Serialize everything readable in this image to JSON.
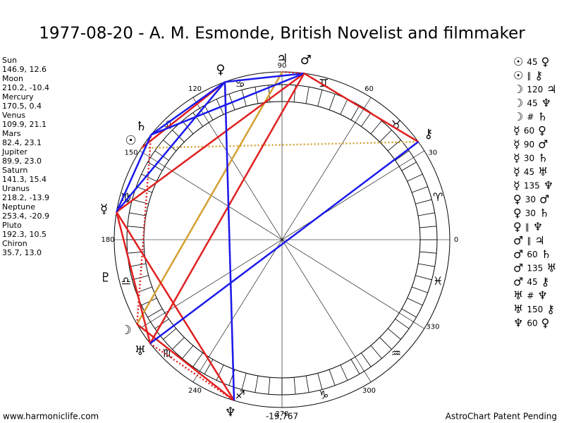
{
  "header": {
    "title": "1977-08-20 - A. M. Esmonde, British Novelist and filmmaker"
  },
  "planets": [
    {
      "name": "Sun",
      "glyph": "☉",
      "coords": "146.9, 12.6"
    },
    {
      "name": "Moon",
      "glyph": "☽",
      "coords": "210.2, -10.4"
    },
    {
      "name": "Mercury",
      "glyph": "☿",
      "coords": "170.5, 0.4"
    },
    {
      "name": "Venus",
      "glyph": "♀",
      "coords": "109.9, 21.1"
    },
    {
      "name": "Mars",
      "glyph": "♂",
      "coords": "82.4, 23.1"
    },
    {
      "name": "Jupiter",
      "glyph": "♃",
      "coords": "89.9, 23.0"
    },
    {
      "name": "Saturn",
      "glyph": "♄",
      "coords": "141.3, 15.4"
    },
    {
      "name": "Uranus",
      "glyph": "♅",
      "coords": "218.2, -13.9"
    },
    {
      "name": "Neptune",
      "glyph": "♆",
      "coords": "253.4, -20.9"
    },
    {
      "name": "Pluto",
      "glyph": "♇",
      "coords": "192.3, 10.5"
    },
    {
      "name": "Chiron",
      "glyph": "⚷",
      "coords": "35.7, 13.0"
    }
  ],
  "signs": [
    "♈",
    "♉",
    "♊",
    "♋",
    "♌",
    "♍",
    "♎",
    "♏",
    "♐",
    "♑",
    "♒",
    "♓"
  ],
  "degree_labels": [
    90,
    60,
    30,
    0,
    330,
    300,
    270,
    240,
    180,
    150,
    120
  ],
  "aspects": [
    {
      "p1": "☉",
      "asp": "45",
      "p2": "♀",
      "color": "#e02020",
      "style": "solid"
    },
    {
      "p1": "☉",
      "asp": "∥",
      "p2": "⚷",
      "color": "#d4a030",
      "style": "dotted"
    },
    {
      "p1": "☽",
      "asp": "120",
      "p2": "♃",
      "color": "#d4a030",
      "style": "solid"
    },
    {
      "p1": "☽",
      "asp": "45",
      "p2": "♆",
      "color": "#e02020",
      "style": "solid"
    },
    {
      "p1": "☽",
      "asp": "#",
      "p2": "♄",
      "color": "#e02020",
      "style": "dotted"
    },
    {
      "p1": "☿",
      "asp": "60",
      "p2": "♀",
      "color": "#1a1aee",
      "style": "solid"
    },
    {
      "p1": "☿",
      "asp": "90",
      "p2": "♂",
      "color": "#e02020",
      "style": "solid"
    },
    {
      "p1": "☿",
      "asp": "30",
      "p2": "♄",
      "color": "#1a1aee",
      "style": "solid"
    },
    {
      "p1": "☿",
      "asp": "45",
      "p2": "♅",
      "color": "#e02020",
      "style": "solid"
    },
    {
      "p1": "☿",
      "asp": "135",
      "p2": "♆",
      "color": "#e02020",
      "style": "solid"
    },
    {
      "p1": "♀",
      "asp": "30",
      "p2": "♂",
      "color": "#1a1aee",
      "style": "solid"
    },
    {
      "p1": "♀",
      "asp": "30",
      "p2": "♄",
      "color": "#1a1aee",
      "style": "solid"
    },
    {
      "p1": "♀",
      "asp": "∥",
      "p2": "♆",
      "color": "#e02020",
      "style": "dotted"
    },
    {
      "p1": "♂",
      "asp": "∥",
      "p2": "♃",
      "color": "#e02020",
      "style": "dotted"
    },
    {
      "p1": "♂",
      "asp": "60",
      "p2": "♄",
      "color": "#1a1aee",
      "style": "solid"
    },
    {
      "p1": "♂",
      "asp": "135",
      "p2": "♅",
      "color": "#e02020",
      "style": "solid"
    },
    {
      "p1": "♂",
      "asp": "45",
      "p2": "⚷",
      "color": "#e02020",
      "style": "solid"
    },
    {
      "p1": "♅",
      "asp": "#",
      "p2": "♆",
      "color": "#e02020",
      "style": "dotted"
    },
    {
      "p1": "♅",
      "asp": "150",
      "p2": "⚷",
      "color": "#1a1aee",
      "style": "solid"
    },
    {
      "p1": "♆",
      "asp": "60",
      "p2": "♀",
      "color": "#1a1aee",
      "style": "solid"
    }
  ],
  "footer": {
    "left": "www.harmoniclife.com",
    "center": "-19,767",
    "right": "AstroChart Patent Pending"
  }
}
